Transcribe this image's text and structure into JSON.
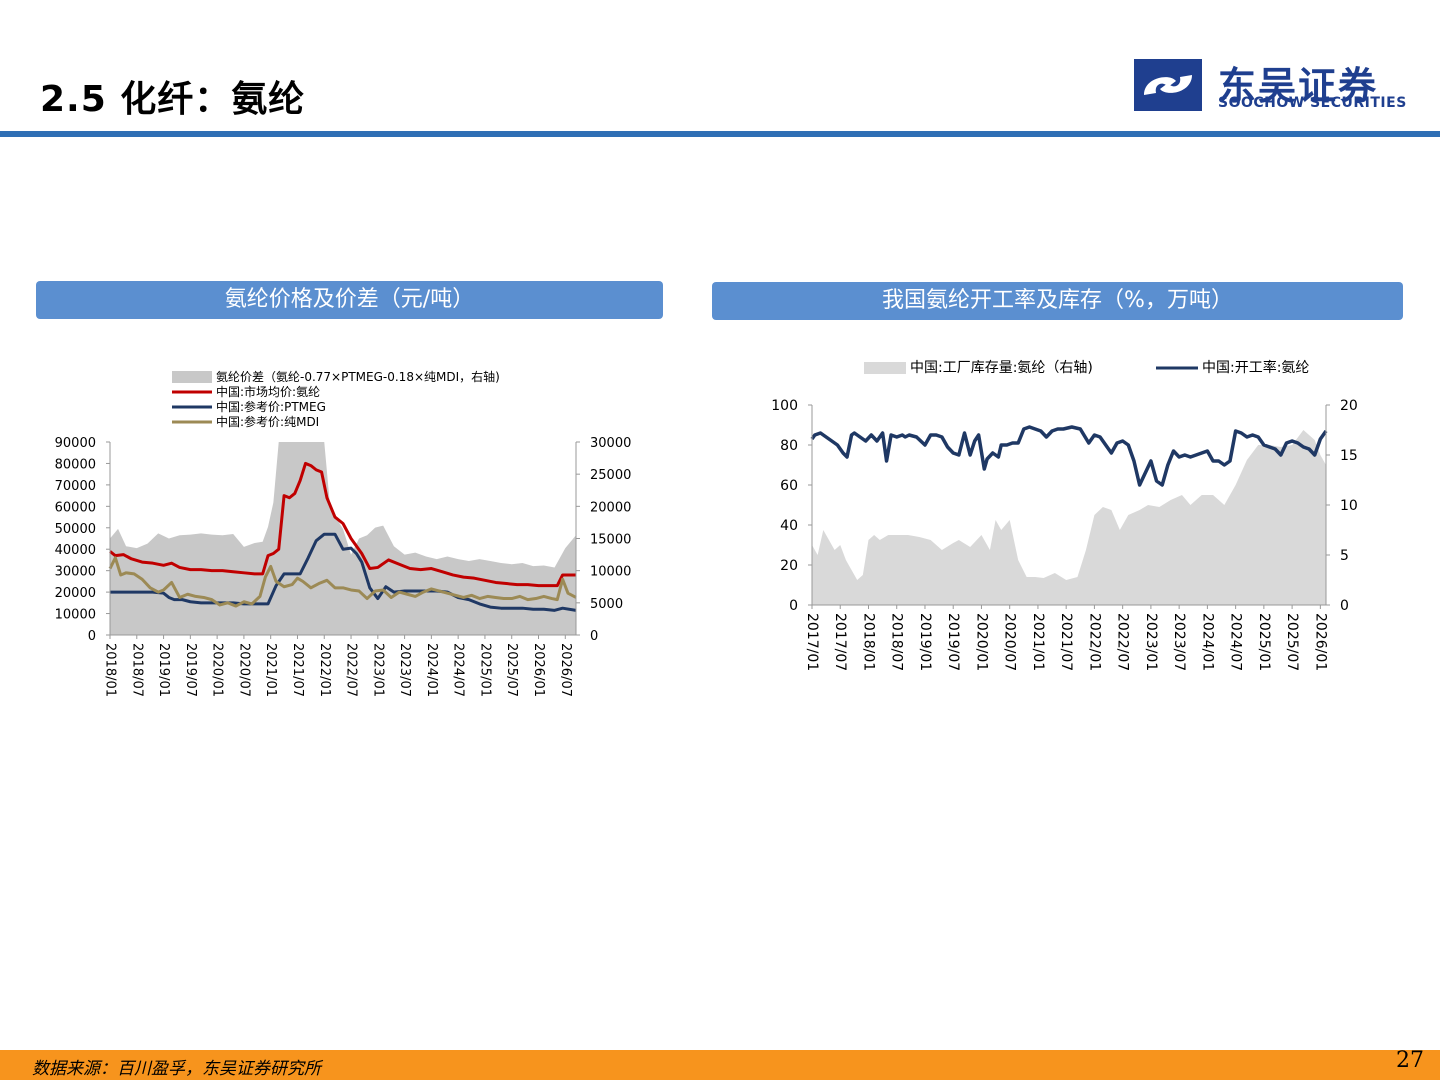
{
  "header": {
    "title": "2.5 化纤：氨纶"
  },
  "logo": {
    "cn": "东吴证券",
    "en": "SOOCHOW SECURITIES",
    "brand_color": "#1f3f8f"
  },
  "panels": [
    {
      "title": "氨纶价格及价差（元/吨）"
    },
    {
      "title": "我国氨纶开工率及库存（%，万吨）"
    }
  ],
  "footer": {
    "source": "数据来源：百川盈孚，东吴证券研究所",
    "page": "27"
  },
  "chart_data": [
    {
      "type": "line",
      "legend": [
        {
          "label": "氨纶价差（氨纶-0.77×PTMEG-0.18×纯MDI，右轴)",
          "kind": "area",
          "color": "#c8c8c8"
        },
        {
          "label": "中国:市场均价:氨纶",
          "kind": "line",
          "color": "#c00000"
        },
        {
          "label": "中国:参考价:PTMEG",
          "kind": "line",
          "color": "#1f3864"
        },
        {
          "label": "中国:参考价:纯MDI",
          "kind": "line",
          "color": "#9c8a55"
        }
      ],
      "x_ticks": [
        "2018/01",
        "2018/07",
        "2019/01",
        "2019/07",
        "2020/01",
        "2020/07",
        "2021/01",
        "2021/07",
        "2022/01",
        "2022/07",
        "2023/01",
        "2023/07",
        "2024/01",
        "2024/07",
        "2025/01",
        "2025/07",
        "2026/01",
        "2026/07"
      ],
      "x_range": [
        2018.0,
        2026.7
      ],
      "y_left": {
        "min": 0,
        "max": 90000,
        "ticks": [
          "0",
          "10000",
          "20000",
          "30000",
          "40000",
          "50000",
          "60000",
          "70000",
          "80000",
          "90000"
        ]
      },
      "y_right": {
        "min": 0,
        "max": 30000,
        "ticks": [
          "0",
          "5000",
          "10000",
          "15000",
          "20000",
          "25000",
          "30000"
        ]
      },
      "series": [
        {
          "name": "氨纶价差（氨纶-0.77×PTMEG-0.18×纯MDI，右轴)",
          "axis": "right",
          "kind": "area",
          "color": "#c8c8c8",
          "x": [
            2018.0,
            2018.15,
            2018.3,
            2018.5,
            2018.7,
            2018.9,
            2019.1,
            2019.3,
            2019.5,
            2019.7,
            2019.9,
            2020.1,
            2020.3,
            2020.5,
            2020.7,
            2020.85,
            2020.95,
            2021.05,
            2021.15,
            2021.25,
            2021.35,
            2021.45,
            2021.55,
            2021.7,
            2021.85,
            2022.0,
            2022.1,
            2022.2,
            2022.35,
            2022.5,
            2022.65,
            2022.8,
            2022.95,
            2023.1,
            2023.3,
            2023.5,
            2023.7,
            2023.9,
            2024.1,
            2024.3,
            2024.5,
            2024.7,
            2024.9,
            2025.1,
            2025.3,
            2025.5,
            2025.7,
            2025.9,
            2026.1,
            2026.3,
            2026.5,
            2026.7
          ],
          "y": [
            15000,
            16500,
            13800,
            13500,
            14200,
            15800,
            15000,
            15500,
            15600,
            15800,
            15600,
            15500,
            15700,
            13700,
            14300,
            14500,
            16800,
            20600,
            30000,
            30000,
            30000,
            30000,
            30000,
            30000,
            30000,
            30000,
            20800,
            18500,
            16500,
            12500,
            15000,
            15500,
            16700,
            17000,
            13800,
            12500,
            12800,
            12200,
            11800,
            12200,
            11800,
            11500,
            11800,
            11500,
            11200,
            11000,
            11200,
            10700,
            10800,
            10500,
            13500,
            15500
          ]
        },
        {
          "name": "中国:市场均价:氨纶",
          "axis": "left",
          "kind": "line",
          "color": "#c00000",
          "x": [
            2018.0,
            2018.1,
            2018.25,
            2018.4,
            2018.6,
            2018.8,
            2019.0,
            2019.15,
            2019.3,
            2019.5,
            2019.7,
            2019.9,
            2020.1,
            2020.3,
            2020.5,
            2020.7,
            2020.85,
            2020.95,
            2021.05,
            2021.15,
            2021.25,
            2021.35,
            2021.45,
            2021.55,
            2021.65,
            2021.75,
            2021.85,
            2021.95,
            2022.05,
            2022.2,
            2022.35,
            2022.5,
            2022.7,
            2022.85,
            2023.0,
            2023.2,
            2023.4,
            2023.6,
            2023.8,
            2024.0,
            2024.2,
            2024.4,
            2024.6,
            2024.8,
            2025.0,
            2025.2,
            2025.4,
            2025.6,
            2025.8,
            2026.0,
            2026.2,
            2026.35,
            2026.45,
            2026.7
          ],
          "y": [
            39000,
            37000,
            37500,
            35500,
            34000,
            33500,
            32500,
            33500,
            31500,
            30500,
            30500,
            30000,
            30000,
            29500,
            29000,
            28500,
            28500,
            37000,
            38000,
            40000,
            65000,
            64000,
            66000,
            72000,
            80000,
            79000,
            77000,
            76000,
            64000,
            55000,
            52000,
            45000,
            38000,
            31000,
            31500,
            35000,
            33000,
            31000,
            30500,
            31000,
            29500,
            28000,
            27000,
            26500,
            25500,
            24500,
            24000,
            23500,
            23500,
            23000,
            23000,
            23000,
            28000,
            28000
          ]
        },
        {
          "name": "中国:参考价:PTMEG",
          "axis": "left",
          "kind": "line",
          "color": "#1f3864",
          "x": [
            2018.0,
            2018.2,
            2018.4,
            2018.6,
            2018.8,
            2019.0,
            2019.1,
            2019.2,
            2019.35,
            2019.5,
            2019.7,
            2019.9,
            2020.1,
            2020.3,
            2020.5,
            2020.7,
            2020.85,
            2020.95,
            2021.1,
            2021.25,
            2021.4,
            2021.55,
            2021.7,
            2021.85,
            2022.0,
            2022.1,
            2022.2,
            2022.35,
            2022.5,
            2022.6,
            2022.7,
            2022.85,
            2023.0,
            2023.15,
            2023.3,
            2023.5,
            2023.7,
            2023.9,
            2024.1,
            2024.3,
            2024.5,
            2024.7,
            2024.9,
            2025.1,
            2025.3,
            2025.5,
            2025.7,
            2025.9,
            2026.1,
            2026.3,
            2026.45,
            2026.7
          ],
          "y": [
            20000,
            20000,
            20000,
            20000,
            20000,
            19500,
            17500,
            16500,
            16500,
            15500,
            15000,
            15000,
            15000,
            15000,
            14500,
            14500,
            14500,
            14500,
            23000,
            28500,
            28500,
            28500,
            36000,
            44000,
            47000,
            47000,
            47000,
            40000,
            40500,
            38000,
            34000,
            22000,
            17000,
            22500,
            20000,
            20500,
            20500,
            20500,
            20500,
            20000,
            17500,
            16500,
            14500,
            13000,
            12500,
            12500,
            12500,
            12000,
            12000,
            11500,
            12500,
            11500
          ]
        },
        {
          "name": "中国:参考价:纯MDI",
          "axis": "left",
          "kind": "line",
          "color": "#9c8a55",
          "x": [
            2018.0,
            2018.1,
            2018.2,
            2018.3,
            2018.45,
            2018.6,
            2018.75,
            2018.9,
            2019.0,
            2019.15,
            2019.3,
            2019.45,
            2019.6,
            2019.75,
            2019.9,
            2020.05,
            2020.2,
            2020.35,
            2020.5,
            2020.65,
            2020.8,
            2020.9,
            2021.0,
            2021.1,
            2021.25,
            2021.4,
            2021.5,
            2021.6,
            2021.75,
            2021.9,
            2022.05,
            2022.2,
            2022.35,
            2022.5,
            2022.65,
            2022.8,
            2022.95,
            2023.1,
            2023.25,
            2023.4,
            2023.55,
            2023.7,
            2023.85,
            2024.0,
            2024.15,
            2024.3,
            2024.45,
            2024.6,
            2024.75,
            2024.9,
            2025.05,
            2025.2,
            2025.35,
            2025.5,
            2025.65,
            2025.8,
            2025.95,
            2026.1,
            2026.25,
            2026.35,
            2026.45,
            2026.55,
            2026.7
          ],
          "y": [
            31000,
            36000,
            28000,
            29000,
            28500,
            26000,
            22000,
            20000,
            21000,
            24500,
            17500,
            19000,
            18000,
            17500,
            16500,
            14000,
            15000,
            13500,
            15500,
            14500,
            18000,
            27000,
            32000,
            25000,
            22500,
            23500,
            26500,
            25000,
            22000,
            24000,
            25500,
            22000,
            22000,
            21000,
            20500,
            17000,
            20500,
            21000,
            17500,
            20000,
            19000,
            18000,
            20000,
            21500,
            20500,
            19500,
            18500,
            17500,
            18500,
            17000,
            18000,
            17500,
            17000,
            17000,
            18000,
            16500,
            17000,
            18000,
            17000,
            16500,
            26000,
            19500,
            17500
          ]
        }
      ]
    },
    {
      "type": "line",
      "legend": [
        {
          "label": "中国:工厂库存量:氨纶（右轴)",
          "kind": "area",
          "color": "#d9d9d9"
        },
        {
          "label": "中国:开工率:氨纶",
          "kind": "line",
          "color": "#1f3864"
        }
      ],
      "x_ticks": [
        "2017/01",
        "2017/07",
        "2018/01",
        "2018/07",
        "2019/01",
        "2019/07",
        "2020/01",
        "2020/07",
        "2021/01",
        "2021/07",
        "2022/01",
        "2022/07",
        "2023/01",
        "2023/07",
        "2024/01",
        "2024/07",
        "2025/01",
        "2025/07",
        "2026/01"
      ],
      "x_range": [
        2017.0,
        2026.1
      ],
      "y_left": {
        "min": 0,
        "max": 100,
        "ticks": [
          "0",
          "20",
          "40",
          "60",
          "80",
          "100"
        ]
      },
      "y_right": {
        "min": 0,
        "max": 20,
        "ticks": [
          "0",
          "5",
          "10",
          "15",
          "20"
        ]
      },
      "series": [
        {
          "name": "中国:工厂库存量:氨纶（右轴)",
          "axis": "right",
          "kind": "area",
          "color": "#d9d9d9",
          "x": [
            2017.0,
            2017.1,
            2017.2,
            2017.3,
            2017.4,
            2017.5,
            2017.6,
            2017.7,
            2017.8,
            2017.9,
            2018.0,
            2018.1,
            2018.2,
            2018.35,
            2018.5,
            2018.7,
            2018.9,
            2019.1,
            2019.3,
            2019.5,
            2019.6,
            2019.8,
            2020.0,
            2020.15,
            2020.25,
            2020.35,
            2020.5,
            2020.65,
            2020.8,
            2020.95,
            2021.1,
            2021.3,
            2021.5,
            2021.7,
            2021.85,
            2022.0,
            2022.15,
            2022.3,
            2022.45,
            2022.6,
            2022.8,
            2022.95,
            2023.15,
            2023.35,
            2023.55,
            2023.7,
            2023.9,
            2024.1,
            2024.3,
            2024.5,
            2024.7,
            2024.9,
            2025.1,
            2025.3,
            2025.5,
            2025.7,
            2025.9,
            2026.0,
            2026.1
          ],
          "y": [
            6,
            5,
            7.5,
            6.5,
            5.5,
            6,
            4.5,
            3.5,
            2.5,
            3,
            6.5,
            7,
            6.5,
            7,
            7,
            7,
            6.8,
            6.5,
            5.5,
            6.2,
            6.5,
            5.8,
            7,
            5.5,
            8.5,
            7.5,
            8.5,
            4.5,
            2.8,
            2.8,
            2.7,
            3.2,
            2.5,
            2.8,
            5.5,
            9,
            9.8,
            9.5,
            7.5,
            9,
            9.5,
            10,
            9.8,
            10.5,
            11,
            10,
            11,
            11,
            10,
            12,
            14.5,
            16,
            16,
            15.8,
            16,
            17.5,
            16.5,
            15,
            14
          ]
        },
        {
          "name": "中国:开工率:氨纶",
          "axis": "left",
          "kind": "line",
          "color": "#1f3864",
          "x": [
            2017.0,
            2017.05,
            2017.15,
            2017.25,
            2017.35,
            2017.45,
            2017.55,
            2017.62,
            2017.7,
            2017.75,
            2017.85,
            2017.95,
            2018.05,
            2018.15,
            2018.25,
            2018.32,
            2018.4,
            2018.5,
            2018.6,
            2018.65,
            2018.72,
            2018.85,
            2019.0,
            2019.1,
            2019.2,
            2019.3,
            2019.4,
            2019.5,
            2019.6,
            2019.7,
            2019.8,
            2019.88,
            2019.95,
            2020.05,
            2020.1,
            2020.2,
            2020.3,
            2020.35,
            2020.45,
            2020.55,
            2020.65,
            2020.75,
            2020.85,
            2020.95,
            2021.05,
            2021.15,
            2021.25,
            2021.35,
            2021.45,
            2021.6,
            2021.75,
            2021.9,
            2022.0,
            2022.1,
            2022.2,
            2022.3,
            2022.4,
            2022.5,
            2022.6,
            2022.7,
            2022.8,
            2022.9,
            2023.0,
            2023.1,
            2023.2,
            2023.3,
            2023.4,
            2023.5,
            2023.6,
            2023.7,
            2023.8,
            2023.9,
            2024.0,
            2024.1,
            2024.2,
            2024.3,
            2024.4,
            2024.5,
            2024.6,
            2024.7,
            2024.8,
            2024.9,
            2025.0,
            2025.1,
            2025.2,
            2025.3,
            2025.4,
            2025.5,
            2025.6,
            2025.7,
            2025.8,
            2025.9,
            2026.0,
            2026.1
          ],
          "y": [
            83,
            85,
            86,
            84,
            82,
            80,
            76,
            74,
            85,
            86,
            84,
            82,
            85,
            82,
            86,
            72,
            85,
            84,
            85,
            84,
            85,
            84,
            80,
            85,
            85,
            84,
            79,
            76,
            75,
            86,
            75,
            82,
            85,
            68,
            73,
            76,
            74,
            80,
            80,
            81,
            81,
            88,
            89,
            88,
            87,
            84,
            87,
            88,
            88,
            89,
            88,
            81,
            85,
            84,
            80,
            76,
            81,
            82,
            80,
            72,
            60,
            66,
            72,
            62,
            60,
            70,
            77,
            74,
            75,
            74,
            75,
            76,
            77,
            72,
            72,
            70,
            72,
            87,
            86,
            84,
            85,
            84,
            80,
            79,
            78,
            75,
            81,
            82,
            81,
            79,
            78,
            75,
            83,
            87
          ]
        }
      ]
    }
  ]
}
